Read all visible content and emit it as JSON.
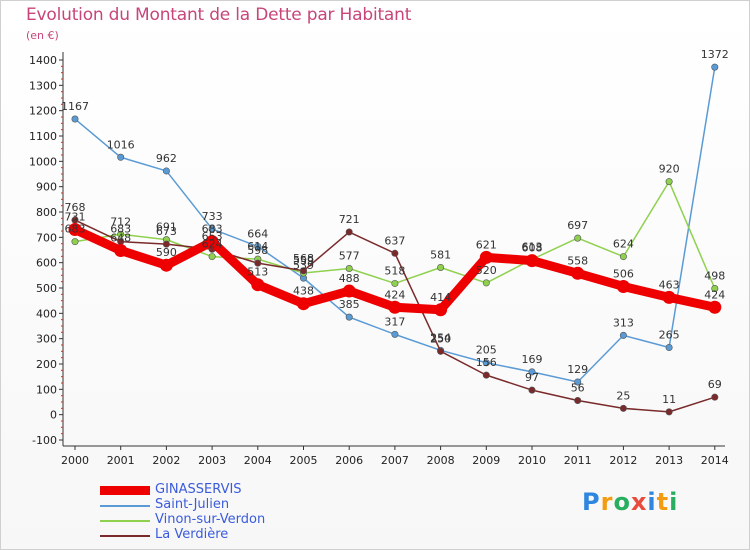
{
  "title": "Evolution du Montant de la Dette par Habitant",
  "subtitle": "(en €)",
  "logo": {
    "letters": [
      {
        "char": "P",
        "color": "#2e86de"
      },
      {
        "char": "r",
        "color": "#f39c12"
      },
      {
        "char": "o",
        "color": "#27ae60"
      },
      {
        "char": "x",
        "color": "#e74c3c"
      },
      {
        "char": "i",
        "color": "#2e86de"
      },
      {
        "char": "t",
        "color": "#f39c12"
      },
      {
        "char": "i",
        "color": "#27ae60"
      }
    ]
  },
  "chart_data": {
    "type": "line",
    "title": "Evolution du Montant de la Dette par Habitant",
    "subtitle": "(en €)",
    "categories": [
      "2000",
      "2001",
      "2002",
      "2003",
      "2004",
      "2005",
      "2006",
      "2007",
      "2008",
      "2009",
      "2010",
      "2011",
      "2012",
      "2013",
      "2014"
    ],
    "ylim": [
      -100,
      1400
    ],
    "yticks": [
      -100,
      0,
      100,
      200,
      300,
      400,
      500,
      600,
      700,
      800,
      900,
      1000,
      1100,
      1200,
      1300,
      1400
    ],
    "grid": false,
    "legend_position": "bottom-left",
    "series": [
      {
        "name": "GINASSERVIS",
        "color": "#ee0000",
        "values": [
          731,
          648,
          590,
          683,
          513,
          438,
          488,
          424,
          414,
          621,
          608,
          558,
          506,
          463,
          424
        ]
      },
      {
        "name": "Saint-Julien",
        "color": "#5b9bd5",
        "values": [
          1167,
          1016,
          962,
          733,
          664,
          539,
          385,
          317,
          254,
          205,
          169,
          129,
          313,
          265,
          1372
        ]
      },
      {
        "name": "Vinon-sur-Verdon",
        "color": "#8fd14f",
        "values": [
          683,
          712,
          691,
          624,
          614,
          559,
          577,
          518,
          581,
          520,
          613,
          697,
          624,
          920,
          498
        ]
      },
      {
        "name": "La Verdière",
        "color": "#7a2a2a",
        "values": [
          768,
          683,
          673,
          653,
          598,
          568,
          721,
          637,
          250,
          156,
          97,
          56,
          25,
          11,
          69
        ]
      }
    ]
  }
}
